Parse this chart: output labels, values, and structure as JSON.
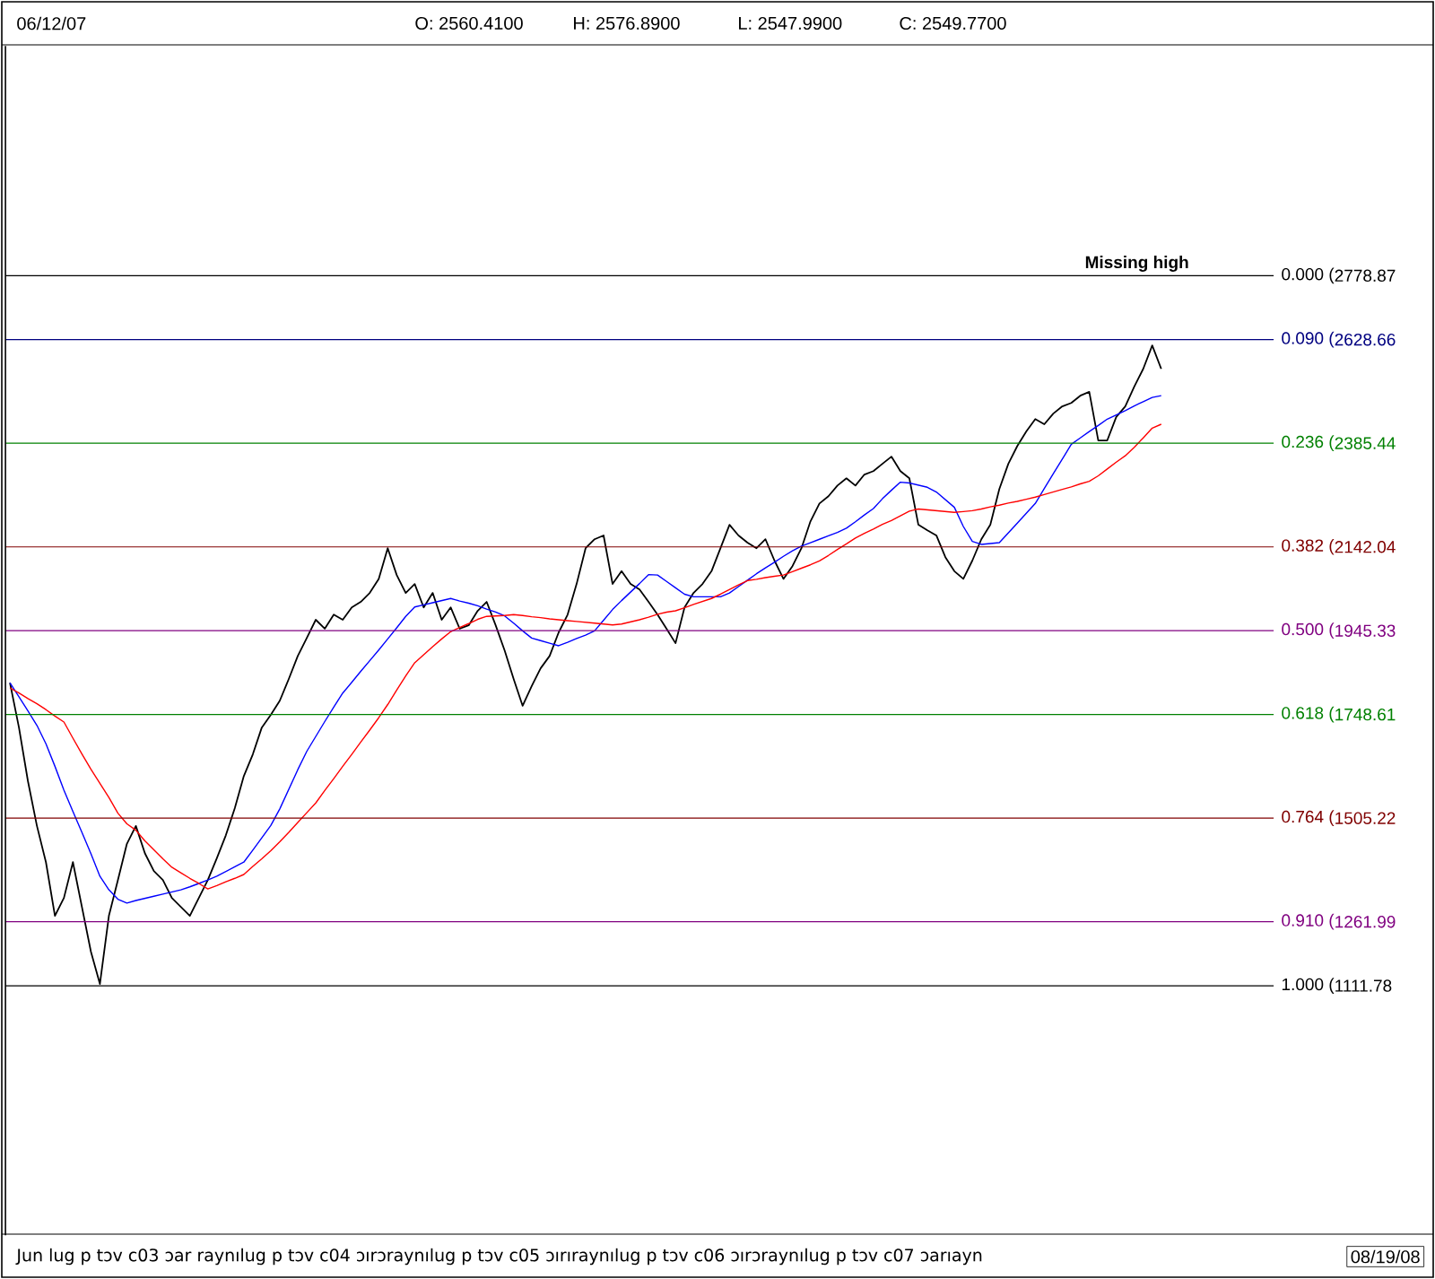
{
  "chart_data": {
    "type": "line",
    "categories": [
      null,
      null,
      null,
      null,
      null,
      null,
      null,
      null,
      null,
      null,
      null,
      null,
      null,
      null,
      null,
      null,
      null,
      null,
      null,
      null,
      null,
      null,
      null,
      null,
      null,
      null,
      null,
      null,
      null,
      null,
      null,
      null,
      null,
      null,
      null,
      null,
      null,
      null,
      null,
      null,
      null,
      null,
      null,
      null,
      null,
      null,
      null,
      null,
      null,
      null,
      null,
      null,
      null,
      null,
      null,
      null,
      null,
      null,
      null,
      null,
      null,
      null,
      null,
      null,
      null,
      null,
      null,
      null,
      null,
      null,
      null,
      null,
      null,
      null,
      null,
      null,
      null,
      null,
      null,
      null,
      null,
      null,
      null,
      null,
      null,
      null,
      null,
      null,
      null,
      null,
      null,
      null,
      null,
      null,
      null,
      null,
      null,
      null,
      null,
      null,
      null,
      null,
      null,
      null,
      null,
      null,
      null,
      null,
      null,
      null,
      null,
      null,
      null,
      null,
      null,
      null,
      null,
      null,
      null,
      null,
      null,
      null,
      null,
      null,
      null,
      null,
      null,
      null,
      null,
      null,
      null,
      null,
      null,
      null,
      null,
      null,
      null,
      null,
      null,
      null,
      null
    ],
    "ylim": [
      526,
      3318
    ],
    "tick_labels": "y",
    "yticks": [
      2778.87,
      2628.66,
      2385.44,
      2142.04,
      1945.33,
      1748.61,
      1505.22,
      1261.99,
      1111.78
    ],
    "series": [
      {
        "color": "#000000",
        "values": [
          1823,
          1718,
          1592,
          1487,
          1402,
          1276,
          1318,
          1402,
          1297,
          1192,
          1116,
          1276,
          1360,
          1445,
          1487,
          1423,
          1381,
          1360,
          1318,
          1297,
          1276,
          1318,
          1360,
          1411,
          1465,
          1529,
          1604,
          1655,
          1718,
          1748,
          1781,
          1832,
          1886,
          1928,
          1971,
          1950,
          1983,
          1971,
          2000,
          2013,
          2034,
          2067,
          2139,
          2076,
          2034,
          2055,
          2000,
          2034,
          1971,
          2000,
          1950,
          1958,
          1992,
          2013,
          1958,
          1899,
          1832,
          1769,
          1815,
          1857,
          1886,
          1941,
          1983,
          2055,
          2139,
          2160,
          2169,
          2055,
          2085,
          2055,
          2042,
          2013,
          1983,
          1950,
          1916,
          2000,
          2034,
          2055,
          2085,
          2139,
          2194,
          2169,
          2152,
          2139,
          2160,
          2110,
          2067,
          2097,
          2139,
          2202,
          2244,
          2261,
          2286,
          2303,
          2286,
          2312,
          2320,
          2337,
          2354,
          2320,
          2303,
          2194,
          2181,
          2169,
          2118,
          2085,
          2067,
          2110,
          2160,
          2194,
          2278,
          2337,
          2379,
          2413,
          2442,
          2430,
          2455,
          2472,
          2480,
          2497,
          2506,
          2392,
          2392,
          2447,
          2472,
          2518,
          2560,
          2615,
          2560,
          null,
          null,
          null,
          null,
          null,
          null,
          null,
          null,
          null,
          null,
          null,
          null
        ]
      },
      {
        "color": "#0000ff",
        "values": [
          1823,
          1790,
          1757,
          1723,
          1680,
          1627,
          1571,
          1521,
          1472,
          1422,
          1369,
          1337,
          1315,
          1306,
          1312,
          1317,
          1322,
          1327,
          1332,
          1337,
          1344,
          1352,
          1360,
          1369,
          1380,
          1391,
          1402,
          1430,
          1459,
          1488,
          1527,
          1573,
          1619,
          1662,
          1697,
          1732,
          1766,
          1799,
          1824,
          1850,
          1875,
          1900,
          1926,
          1952,
          1979,
          2001,
          2006,
          2011,
          2016,
          2021,
          2015,
          2010,
          2004,
          1996,
          1989,
          1980,
          1963,
          1945,
          1928,
          1922,
          1916,
          1910,
          1918,
          1927,
          1935,
          1945,
          1970,
          1995,
          2016,
          2036,
          2056,
          2077,
          2076,
          2061,
          2046,
          2031,
          2025,
          2025,
          2025,
          2025,
          2034,
          2049,
          2064,
          2079,
          2093,
          2106,
          2120,
          2133,
          2144,
          2152,
          2160,
          2168,
          2176,
          2186,
          2201,
          2217,
          2232,
          2255,
          2275,
          2294,
          2292,
          2287,
          2282,
          2271,
          2253,
          2235,
          2190,
          2155,
          2148,
          2150,
          2152,
          2175,
          2198,
          2221,
          2244,
          2279,
          2314,
          2348,
          2383,
          2398,
          2413,
          2427,
          2442,
          2452,
          2462,
          2473,
          2483,
          2493,
          2497,
          null,
          null,
          null,
          null,
          null,
          null,
          null,
          null,
          null,
          null,
          null,
          null
        ]
      },
      {
        "color": "#ff0000",
        "values": [
          1811,
          1799,
          1786,
          1774,
          1760,
          1745,
          1731,
          1693,
          1656,
          1620,
          1587,
          1554,
          1517,
          1492,
          1477,
          1452,
          1431,
          1410,
          1390,
          1377,
          1364,
          1352,
          1339,
          1347,
          1356,
          1364,
          1373,
          1392,
          1410,
          1429,
          1450,
          1472,
          1495,
          1518,
          1541,
          1570,
          1598,
          1627,
          1655,
          1684,
          1712,
          1741,
          1772,
          1806,
          1839,
          1870,
          1889,
          1908,
          1926,
          1943,
          1953,
          1962,
          1972,
          1979,
          1980,
          1981,
          1983,
          1981,
          1978,
          1976,
          1973,
          1971,
          1969,
          1967,
          1965,
          1963,
          1961,
          1959,
          1961,
          1966,
          1971,
          1977,
          1984,
          1989,
          1992,
          1999,
          2007,
          2014,
          2021,
          2031,
          2042,
          2053,
          2063,
          2066,
          2070,
          2073,
          2076,
          2084,
          2092,
          2100,
          2109,
          2122,
          2136,
          2149,
          2163,
          2174,
          2184,
          2195,
          2204,
          2215,
          2226,
          2231,
          2229,
          2227,
          2225,
          2223,
          2225,
          2227,
          2231,
          2236,
          2240,
          2245,
          2249,
          2254,
          2259,
          2265,
          2271,
          2277,
          2283,
          2290,
          2296,
          2309,
          2325,
          2341,
          2356,
          2376,
          2398,
          2421,
          2430,
          null,
          null,
          null,
          null,
          null,
          null,
          null,
          null,
          null,
          null,
          null,
          null
        ]
      }
    ],
    "ref_lines": [
      {
        "axis": "y",
        "value": 2778.87,
        "color": "#000000"
      },
      {
        "axis": "y",
        "value": 2628.66,
        "color": "#000080"
      },
      {
        "axis": "y",
        "value": 2385.44,
        "color": "#008000"
      },
      {
        "axis": "y",
        "value": 2142.04,
        "color": "#800000"
      },
      {
        "axis": "y",
        "value": 1945.33,
        "color": "#800080"
      },
      {
        "axis": "y",
        "value": 1748.61,
        "color": "#008000"
      },
      {
        "axis": "y",
        "value": 1505.22,
        "color": "#800000"
      },
      {
        "axis": "y",
        "value": 1261.99,
        "color": "#800080"
      },
      {
        "axis": "y",
        "value": 1111.78,
        "color": "#000000"
      }
    ],
    "annotations": [
      "06/12/07",
      "O: 2560.4100",
      "H: 2576.8900",
      "L: 2547.9900",
      "C: 2549.7700",
      "Jun lug p tɔv c03 ɔar raynılug p tɔv c04 ɔırɔraynılug p tɔv c05 ɔırıraynılug p tɔv c06 ɔırɔraynılug p tɔv c07 ɔarıayn",
      "08/19/08",
      "Missing high",
      "0.000 (",
      "0.090 (",
      "0.236 (",
      "0.382 (",
      "0.500 (",
      "0.618 (",
      "0.764 (",
      "0.910 (",
      "1.000 ("
    ]
  }
}
